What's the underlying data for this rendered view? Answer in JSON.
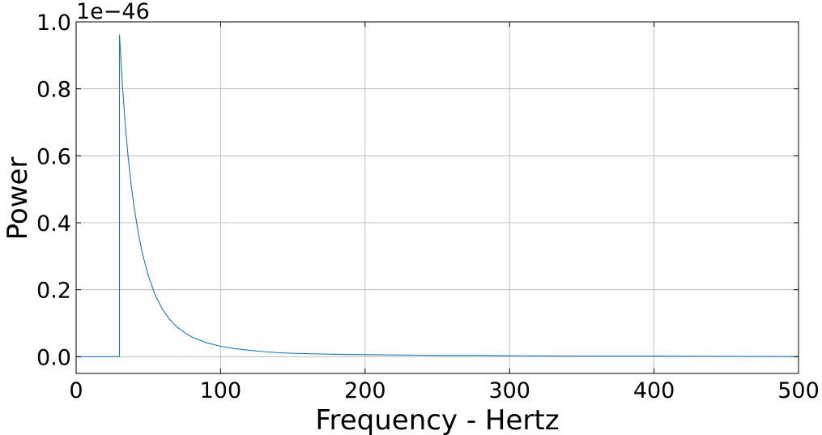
{
  "chart_data": {
    "type": "line",
    "title": "",
    "xlabel": "Frequency - Hertz",
    "ylabel": "Power",
    "y_offset_label": "1e−46",
    "xlim": [
      0,
      500
    ],
    "ylim": [
      -0.05,
      1.0
    ],
    "xticks": [
      0,
      100,
      200,
      300,
      400,
      500
    ],
    "xtick_labels": [
      "0",
      "100",
      "200",
      "300",
      "400",
      "500"
    ],
    "yticks": [
      0.0,
      0.2,
      0.4,
      0.6,
      0.8,
      1.0
    ],
    "ytick_labels": [
      "0.0",
      "0.2",
      "0.4",
      "0.6",
      "0.8",
      "1.0"
    ],
    "grid": true,
    "tick_direction": "in",
    "series": [
      {
        "color": "#1f77b4",
        "x": [
          0,
          30,
          30,
          32,
          34,
          36,
          38,
          40,
          43,
          46,
          50,
          55,
          60,
          65,
          70,
          75,
          80,
          90,
          100,
          110,
          120,
          130,
          140,
          150,
          160,
          180,
          200,
          225,
          250,
          275,
          300,
          350,
          400,
          450,
          500
        ],
        "y": [
          0.0,
          0.0,
          0.962,
          0.813,
          0.693,
          0.597,
          0.518,
          0.451,
          0.37,
          0.306,
          0.241,
          0.181,
          0.14,
          0.11,
          0.088,
          0.072,
          0.059,
          0.042,
          0.031,
          0.024,
          0.019,
          0.015,
          0.012,
          0.01,
          0.009,
          0.007,
          0.006,
          0.005,
          0.004,
          0.004,
          0.003,
          0.002,
          0.002,
          0.001,
          0.0
        ]
      }
    ]
  }
}
